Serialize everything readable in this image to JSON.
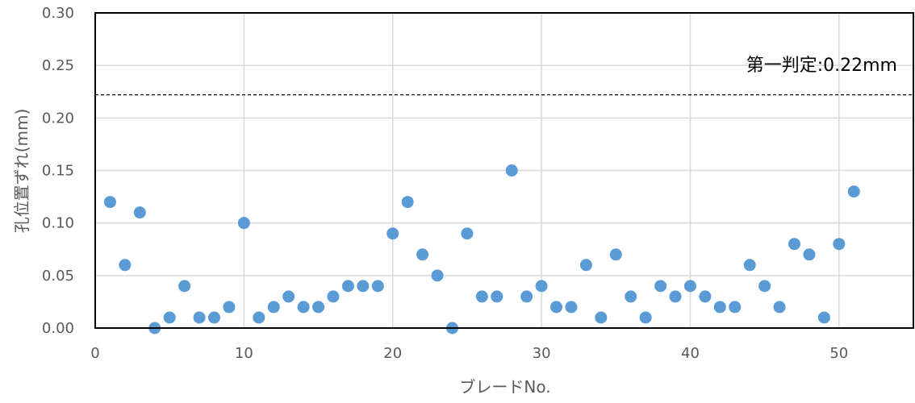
{
  "chart_data": {
    "type": "scatter",
    "title": "",
    "xlabel": "ブレードNo.",
    "ylabel": "孔位置ずれ(mm)",
    "xlim": [
      0,
      55
    ],
    "ylim": [
      0.0,
      0.3
    ],
    "xticks": [
      0,
      10,
      20,
      30,
      40,
      50
    ],
    "xtick_labels": [
      "0",
      "10",
      "20",
      "30",
      "40",
      "50"
    ],
    "yticks": [
      0.0,
      0.05,
      0.1,
      0.15,
      0.2,
      0.25,
      0.3
    ],
    "ytick_labels": [
      "0.00",
      "0.05",
      "0.10",
      "0.15",
      "0.20",
      "0.25",
      "0.30"
    ],
    "grid": true,
    "legend": "none",
    "point_color": "#5b9bd5",
    "series": [
      {
        "x": [
          1,
          2,
          3,
          4,
          5,
          6,
          7,
          8,
          9,
          10,
          11,
          12,
          13,
          14,
          15,
          16,
          17,
          18,
          19,
          20,
          21,
          22,
          23,
          24,
          25,
          26,
          27,
          28,
          29,
          30,
          31,
          32,
          33,
          34,
          35,
          36,
          37,
          38,
          39,
          40,
          41,
          42,
          43,
          44,
          45,
          46,
          47,
          48,
          49,
          50,
          51
        ],
        "y": [
          0.12,
          0.06,
          0.11,
          0.0,
          0.01,
          0.04,
          0.01,
          0.01,
          0.02,
          0.1,
          0.01,
          0.02,
          0.03,
          0.02,
          0.02,
          0.03,
          0.04,
          0.04,
          0.04,
          0.09,
          0.12,
          0.07,
          0.05,
          0.0,
          0.09,
          0.03,
          0.03,
          0.15,
          0.03,
          0.04,
          0.02,
          0.02,
          0.06,
          0.01,
          0.07,
          0.03,
          0.01,
          0.04,
          0.03,
          0.04,
          0.03,
          0.02,
          0.02,
          0.06,
          0.04,
          0.02,
          0.08,
          0.07,
          0.01,
          0.08,
          0.13
        ]
      }
    ],
    "threshold": {
      "value": 0.222,
      "label": "第一判定:0.22mm",
      "style": "dashed"
    }
  }
}
